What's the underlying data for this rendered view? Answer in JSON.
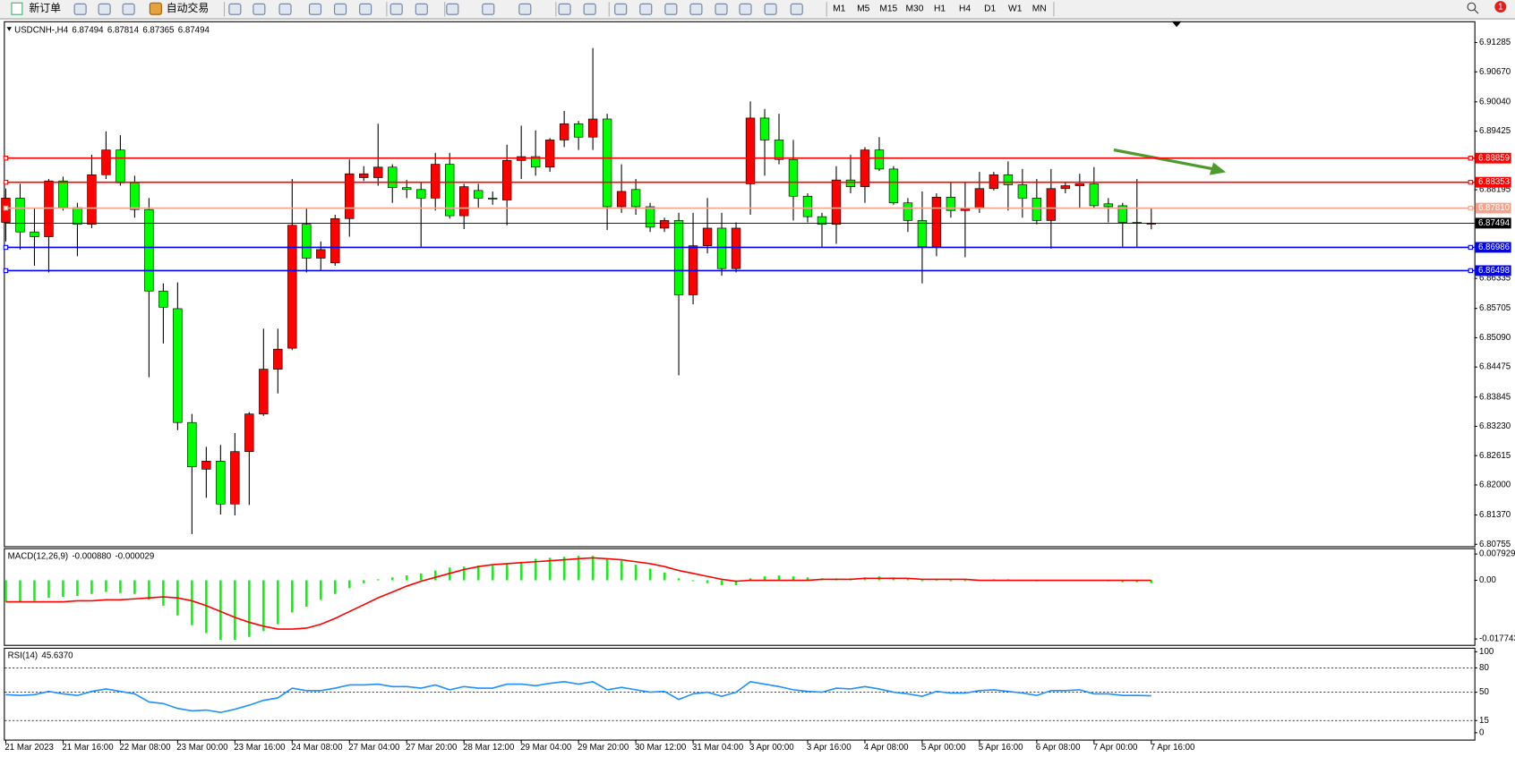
{
  "toolbar": {
    "new_order": "新订单",
    "auto_trading": "自动交易",
    "timeframes": [
      "M1",
      "M5",
      "M15",
      "M30",
      "H1",
      "H4",
      "D1",
      "W1",
      "MN"
    ],
    "notifications": "1"
  },
  "chart_data": [
    {
      "type": "candlestick",
      "title": "USDCNH-,H4",
      "categories": [
        "21 Mar 2023",
        null,
        null,
        null,
        "21 Mar 16:00",
        null,
        null,
        null,
        "22 Mar 08:00",
        null,
        null,
        null,
        "23 Mar 00:00",
        null,
        null,
        null,
        "23 Mar 16:00",
        null,
        null,
        null,
        "24 Mar 08:00",
        null,
        null,
        null,
        "27 Mar 04:00",
        null,
        null,
        null,
        "27 Mar 20:00",
        null,
        null,
        null,
        "28 Mar 12:00",
        null,
        null,
        null,
        "29 Mar 04:00",
        null,
        null,
        null,
        "29 Mar 20:00",
        null,
        null,
        null,
        "30 Mar 12:00",
        null,
        null,
        null,
        "31 Mar 04:00",
        null,
        null,
        null,
        "3 Apr 00:00",
        null,
        null,
        null,
        "3 Apr 16:00",
        null,
        null,
        null,
        "4 Apr 08:00",
        null,
        null,
        null,
        "5 Apr 00:00",
        null,
        null,
        null,
        "5 Apr 16:00",
        null,
        null,
        null,
        "6 Apr 08:00",
        null,
        null,
        null,
        "7 Apr 00:00",
        null,
        null,
        null,
        "7 Apr 16:00"
      ],
      "open": [
        6.8751,
        6.8802,
        6.8731,
        6.8721,
        6.8838,
        6.8782,
        6.8747,
        6.8851,
        6.8903,
        6.8834,
        6.8778,
        6.8607,
        6.857,
        6.8331,
        6.8233,
        6.825,
        6.816,
        6.827,
        6.8349,
        6.8443,
        6.8487,
        6.8747,
        6.8676,
        6.8666,
        6.8759,
        6.8845,
        6.8845,
        6.8867,
        6.8824,
        6.882,
        6.8802,
        6.8873,
        6.8765,
        6.8818,
        6.8802,
        6.8798,
        6.8881,
        6.8889,
        6.8867,
        6.8924,
        6.8958,
        6.893,
        6.8968,
        6.8784,
        6.882,
        6.8784,
        6.8739,
        6.8755,
        6.8599,
        6.8702,
        6.8739,
        6.8654,
        6.8832,
        6.897,
        6.8924,
        6.8883,
        6.8806,
        6.8763,
        6.8747,
        6.884,
        6.8826,
        6.8903,
        6.8863,
        6.8792,
        6.8755,
        6.87,
        6.8804,
        6.8776,
        6.878,
        6.8822,
        6.8851,
        6.883,
        6.8802,
        6.8755,
        6.8822,
        6.8828,
        6.8832,
        6.879,
        6.8786,
        6.8751,
        6.87494
      ],
      "high": [
        6.8822,
        6.8832,
        6.8782,
        6.8842,
        6.8847,
        6.8792,
        6.8893,
        6.8942,
        6.8934,
        6.8849,
        6.8802,
        6.8623,
        6.8625,
        6.8349,
        6.828,
        6.8284,
        6.8309,
        6.8353,
        6.8528,
        6.8528,
        6.8842,
        6.8782,
        6.8711,
        6.8767,
        6.8883,
        6.8869,
        6.8958,
        6.8873,
        6.884,
        6.8836,
        6.8897,
        6.8897,
        6.8832,
        6.8832,
        6.8816,
        6.8914,
        6.8954,
        6.8944,
        6.8928,
        6.8985,
        6.8964,
        6.9117,
        6.8979,
        6.8873,
        6.8842,
        6.8792,
        6.8761,
        6.8771,
        6.8771,
        6.8802,
        6.8771,
        6.8751,
        6.9005,
        6.8989,
        6.8979,
        6.8924,
        6.8812,
        6.8771,
        6.8869,
        6.8893,
        6.8909,
        6.893,
        6.8869,
        6.8802,
        6.8816,
        6.8812,
        6.8836,
        6.8836,
        6.8857,
        6.8857,
        6.8879,
        6.8863,
        6.8842,
        6.8863,
        6.8836,
        6.8853,
        6.8867,
        6.8802,
        6.8792,
        6.8842,
        6.87814
      ],
      "low": [
        6.8711,
        6.8694,
        6.866,
        6.8646,
        6.8776,
        6.868,
        6.8739,
        6.8842,
        6.8828,
        6.8761,
        6.8426,
        6.8497,
        6.8315,
        6.8097,
        6.8173,
        6.8138,
        6.8136,
        6.8158,
        6.8345,
        6.8392,
        6.8483,
        6.8646,
        6.865,
        6.866,
        6.8721,
        6.8838,
        6.8828,
        6.8792,
        6.8802,
        6.87,
        6.8776,
        6.8759,
        6.8737,
        6.8782,
        6.8788,
        6.8745,
        6.8842,
        6.8849,
        6.8857,
        6.8909,
        6.8903,
        6.8903,
        6.8735,
        6.8771,
        6.8767,
        6.8731,
        6.8731,
        6.843,
        6.8579,
        6.8686,
        6.8639,
        6.8646,
        6.8767,
        6.8849,
        6.8873,
        6.8755,
        6.8751,
        6.8698,
        6.8706,
        6.8812,
        6.8792,
        6.8859,
        6.8788,
        6.8731,
        6.8623,
        6.868,
        6.8761,
        6.8678,
        6.8771,
        6.8818,
        6.8776,
        6.8761,
        6.8747,
        6.8696,
        6.8812,
        6.8782,
        6.878,
        6.8751,
        6.87,
        6.87,
        6.87365
      ],
      "close": [
        6.8802,
        6.8731,
        6.8721,
        6.8838,
        6.8782,
        6.8747,
        6.8851,
        6.8903,
        6.8834,
        6.8778,
        6.8607,
        6.8573,
        6.8331,
        6.8238,
        6.825,
        6.816,
        6.827,
        6.8349,
        6.8443,
        6.8485,
        6.8745,
        6.8676,
        6.8694,
        6.8759,
        6.8853,
        6.8853,
        6.8867,
        6.8824,
        6.882,
        6.8802,
        6.8873,
        6.8765,
        6.8826,
        6.8802,
        6.88,
        6.8881,
        6.8889,
        6.8867,
        6.8924,
        6.8958,
        6.893,
        6.8968,
        6.8784,
        6.8816,
        6.8784,
        6.8741,
        6.8755,
        6.8599,
        6.8702,
        6.8739,
        6.8654,
        6.8739,
        6.897,
        6.8924,
        6.8883,
        6.8806,
        6.8763,
        6.8747,
        6.884,
        6.8826,
        6.8903,
        6.8863,
        6.8792,
        6.8755,
        6.87,
        6.8804,
        6.8776,
        6.878,
        6.8822,
        6.8851,
        6.883,
        6.8802,
        6.8755,
        6.8822,
        6.8828,
        6.8832,
        6.8786,
        6.8784,
        6.8751,
        6.8749,
        6.87494
      ],
      "up_color": "#ff0000",
      "down_color": "#00ff00",
      "ylim": [
        6.80714,
        6.91731
      ],
      "yticks": [
        6.91285,
        {
          "value": 6.9067,
          "label": "6.90670"
        },
        {
          "value": 6.9004,
          "label": "6.90040"
        },
        6.89425,
        6.88195,
        6.86335,
        6.85705,
        {
          "value": 6.8509,
          "label": "6.85090"
        },
        6.84475,
        6.83845,
        {
          "value": 6.8323,
          "label": "6.83230"
        },
        6.82615,
        {
          "value": 6.82,
          "label": "6.82000"
        },
        {
          "value": 6.8137,
          "label": "6.81370"
        },
        6.80755
      ],
      "levels": [
        {
          "value": 6.88859,
          "color": "#ff0000"
        },
        {
          "value": 6.88353,
          "color": "#ff0000"
        },
        {
          "value": 6.8781,
          "label": "6.87810",
          "color": "#f4a48e"
        },
        {
          "value": 6.86986,
          "color": "#0000ff"
        },
        {
          "value": 6.86498,
          "color": "#0000ff"
        }
      ],
      "bid": {
        "value": 6.87494,
        "color": "#000000"
      }
    },
    {
      "type": "macd",
      "title": "MACD(12,26,9)",
      "indicator_values": [
        {
          "value": -0.00088,
          "label": "-0.000880"
        },
        {
          "value": -2.9e-05,
          "label": "-0.000029"
        }
      ],
      "series": [
        {
          "style": "histogram",
          "color": "#00ff00",
          "values": [
            -0.00649,
            -0.00649,
            -0.0062,
            -0.00531,
            -0.00502,
            -0.00472,
            -0.00413,
            -0.00354,
            -0.00384,
            -0.00413,
            -0.0059,
            -0.00767,
            -0.01062,
            -0.01357,
            -0.01593,
            -0.018,
            -0.018,
            -0.01711,
            -0.01534,
            -0.01328,
            -0.00974,
            -0.00797,
            -0.0059,
            -0.00413,
            -0.00236,
            -0.00089,
            0.0003,
            0.00089,
            0.00148,
            0.00207,
            0.00295,
            0.00384,
            0.00413,
            0.00443,
            0.00443,
            0.00502,
            0.00561,
            0.00649,
            0.00679,
            0.00708,
            0.00738,
            0.00738,
            0.00649,
            0.0059,
            0.00472,
            0.00354,
            0.00236,
            0.00059,
            -0.0003,
            -0.00089,
            -0.00148,
            -0.00148,
            0.00059,
            0.00118,
            0.00148,
            0.00118,
            0.00089,
            0.00059,
            0.00059,
            0.00059,
            0.00089,
            0.00118,
            0.00089,
            0.00059,
            -0.0003,
            0,
            -0.0003,
            -0.0003,
            0,
            0.0003,
            0.0003,
            0,
            -0.0003,
            0,
            0,
            0,
            0,
            -0.0003,
            -0.00059,
            -0.00059,
            -0.00088
          ]
        },
        {
          "style": "line",
          "color": "#ff0000",
          "values": [
            -0.00649,
            -0.00649,
            -0.00649,
            -0.00649,
            -0.00649,
            -0.0062,
            -0.0062,
            -0.0059,
            -0.0059,
            -0.00561,
            -0.00531,
            -0.00502,
            -0.00531,
            -0.0062,
            -0.00767,
            -0.00944,
            -0.01121,
            -0.01269,
            -0.01387,
            -0.01475,
            -0.01475,
            -0.01446,
            -0.01328,
            -0.01151,
            -0.00944,
            -0.00738,
            -0.00531,
            -0.00354,
            -0.00177,
            -0.0003,
            0.00089,
            0.00207,
            0.00325,
            0.00413,
            0.00472,
            0.00502,
            0.00531,
            0.00561,
            0.0059,
            0.0062,
            0.00649,
            0.00679,
            0.00649,
            0.0062,
            0.00561,
            0.00502,
            0.00413,
            0.00295,
            0.00207,
            0.00118,
            0.0003,
            -0.0003,
            0,
            0,
            0,
            0,
            0,
            0.0003,
            0.0003,
            0.0003,
            0.00059,
            0.00059,
            0.00059,
            0.00059,
            0.0003,
            0.0003,
            0.0003,
            0.0003,
            0,
            0,
            0,
            0,
            0,
            0,
            0,
            0,
            0,
            0,
            0,
            0,
            -2.9e-05
          ]
        }
      ],
      "ylim": [
        -0.01951,
        0.0097
      ],
      "yticks": [
        0.007929,
        {
          "value": 0,
          "label": "0.00"
        },
        -0.017743
      ]
    },
    {
      "type": "rsi",
      "title": "RSI(14)",
      "indicator_values": [
        {
          "value": 45.637,
          "label": "45.6370"
        }
      ],
      "series": [
        {
          "style": "line",
          "color": "#1e90ff",
          "values": [
            47,
            46,
            47,
            51,
            48,
            46,
            51,
            54,
            51,
            48,
            38,
            36,
            30,
            27,
            28,
            25,
            29,
            34,
            40,
            43,
            55,
            52,
            52,
            55,
            59,
            59,
            60,
            57,
            57,
            55,
            59,
            53,
            57,
            55,
            55,
            60,
            60,
            58,
            61,
            63,
            60,
            63,
            53,
            56,
            53,
            50,
            51,
            41,
            48,
            50,
            45,
            50,
            63,
            60,
            57,
            53,
            51,
            50,
            55,
            54,
            57,
            54,
            50,
            48,
            45,
            51,
            49,
            49,
            52,
            53,
            51,
            49,
            46,
            52,
            52,
            53,
            48,
            48,
            46,
            46,
            45.637
          ]
        }
      ],
      "ylim": [
        -8.5,
        104.9
      ],
      "yticks": [
        100,
        80,
        50,
        15,
        0
      ],
      "levels": [
        80,
        50,
        15
      ]
    }
  ]
}
